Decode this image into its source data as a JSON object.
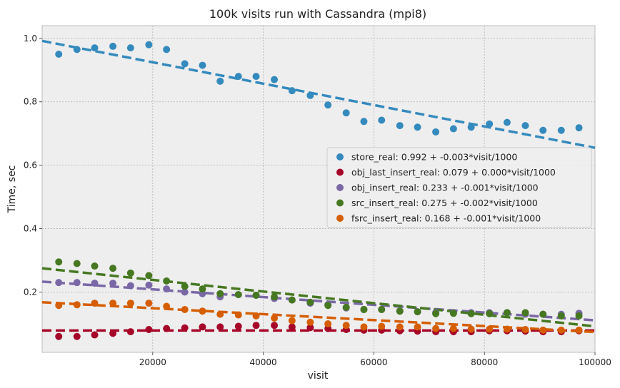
{
  "chart_data": {
    "type": "scatter",
    "title": "100k visits run with Cassandra (mpi8)",
    "xlabel": "visit",
    "ylabel": "Time, sec",
    "xlim": [
      0,
      100000
    ],
    "ylim": [
      0.01,
      1.04
    ],
    "xticks": [
      20000,
      40000,
      60000,
      80000,
      100000
    ],
    "xtick_labels": [
      "20000",
      "40000",
      "60000",
      "80000",
      "100000"
    ],
    "yticks": [
      0.2,
      0.4,
      0.6,
      0.8,
      1.0
    ],
    "ytick_labels": [
      "0.2",
      "0.4",
      "0.6",
      "0.8",
      "1.0"
    ],
    "grid": true,
    "legend_position": "center-right",
    "x": [
      3000,
      6300,
      9500,
      12800,
      16000,
      19300,
      22500,
      25800,
      29000,
      32200,
      35500,
      38700,
      42000,
      45200,
      48500,
      51700,
      55000,
      58200,
      61400,
      64700,
      67900,
      71200,
      74400,
      77600,
      80900,
      84100,
      87400,
      90600,
      93900,
      97100
    ],
    "series": [
      {
        "name": "store_real: 0.992 + -0.003*visit/1000",
        "color": "#348ABD",
        "fit": {
          "intercept": 0.992,
          "slope_per_1000": -0.00337
        },
        "values": [
          0.95,
          0.965,
          0.97,
          0.975,
          0.97,
          0.98,
          0.965,
          0.92,
          0.915,
          0.865,
          0.88,
          0.88,
          0.87,
          0.835,
          0.82,
          0.79,
          0.765,
          0.738,
          0.742,
          0.725,
          0.72,
          0.705,
          0.715,
          0.72,
          0.73,
          0.735,
          0.725,
          0.71,
          0.71,
          0.718
        ]
      },
      {
        "name": "obj_last_insert_real: 0.079 + 0.000*visit/1000",
        "color": "#A60628",
        "fit": {
          "intercept": 0.079,
          "slope_per_1000": 0.0
        },
        "values": [
          0.06,
          0.06,
          0.065,
          0.07,
          0.075,
          0.082,
          0.085,
          0.087,
          0.09,
          0.09,
          0.092,
          0.095,
          0.095,
          0.09,
          0.088,
          0.085,
          0.082,
          0.08,
          0.08,
          0.078,
          0.077,
          0.075,
          0.075,
          0.075,
          0.078,
          0.078,
          0.077,
          0.075,
          0.075,
          0.078
        ]
      },
      {
        "name": "obj_insert_real: 0.233 + -0.001*visit/1000",
        "color": "#7A68A6",
        "fit": {
          "intercept": 0.233,
          "slope_per_1000": -0.00122
        },
        "values": [
          0.23,
          0.23,
          0.228,
          0.228,
          0.22,
          0.222,
          0.21,
          0.2,
          0.195,
          0.185,
          0.192,
          0.19,
          0.18,
          0.175,
          0.165,
          0.16,
          0.15,
          0.145,
          0.145,
          0.14,
          0.138,
          0.135,
          0.135,
          0.135,
          0.135,
          0.135,
          0.13,
          0.13,
          0.13,
          0.133
        ]
      },
      {
        "name": "src_insert_real: 0.275 + -0.002*visit/1000",
        "color": "#467821",
        "fit": {
          "intercept": 0.275,
          "slope_per_1000": -0.00183
        },
        "values": [
          0.295,
          0.29,
          0.282,
          0.275,
          0.26,
          0.252,
          0.235,
          0.218,
          0.21,
          0.195,
          0.192,
          0.19,
          0.185,
          0.175,
          0.168,
          0.158,
          0.152,
          0.145,
          0.145,
          0.14,
          0.138,
          0.132,
          0.133,
          0.132,
          0.132,
          0.135,
          0.135,
          0.13,
          0.125,
          0.125
        ]
      },
      {
        "name": "fsrc_insert_real: 0.168 + -0.001*visit/1000",
        "color": "#D55E00",
        "fit": {
          "intercept": 0.168,
          "slope_per_1000": -0.00094
        },
        "values": [
          0.158,
          0.16,
          0.165,
          0.165,
          0.165,
          0.165,
          0.155,
          0.145,
          0.14,
          0.13,
          0.128,
          0.125,
          0.118,
          0.11,
          0.105,
          0.1,
          0.095,
          0.09,
          0.092,
          0.09,
          0.09,
          0.085,
          0.085,
          0.083,
          0.083,
          0.083,
          0.082,
          0.08,
          0.08,
          0.08
        ]
      }
    ]
  }
}
